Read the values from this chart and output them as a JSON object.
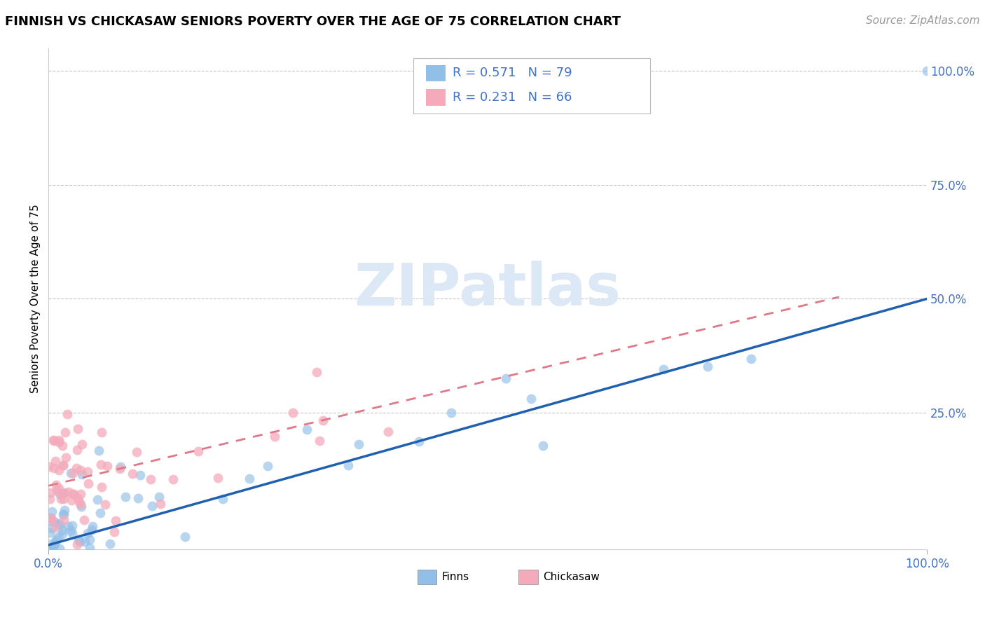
{
  "title": "FINNISH VS CHICKASAW SENIORS POVERTY OVER THE AGE OF 75 CORRELATION CHART",
  "source": "Source: ZipAtlas.com",
  "ylabel": "Seniors Poverty Over the Age of 75",
  "xlim": [
    0,
    1.0
  ],
  "ylim": [
    -0.05,
    1.05
  ],
  "grid_color": "#c8c8c8",
  "finns_color": "#92bfe8",
  "chickasaw_color": "#f4aaba",
  "finns_line_color": "#2060b0",
  "chickasaw_line_color": "#e07888",
  "tick_color": "#4472c4",
  "tick_fontsize": 12,
  "axis_label_fontsize": 11,
  "source_fontsize": 11,
  "title_fontsize": 13,
  "background_color": "#ffffff",
  "watermark_color": "#dce8f5",
  "legend_color": "#4472c4"
}
